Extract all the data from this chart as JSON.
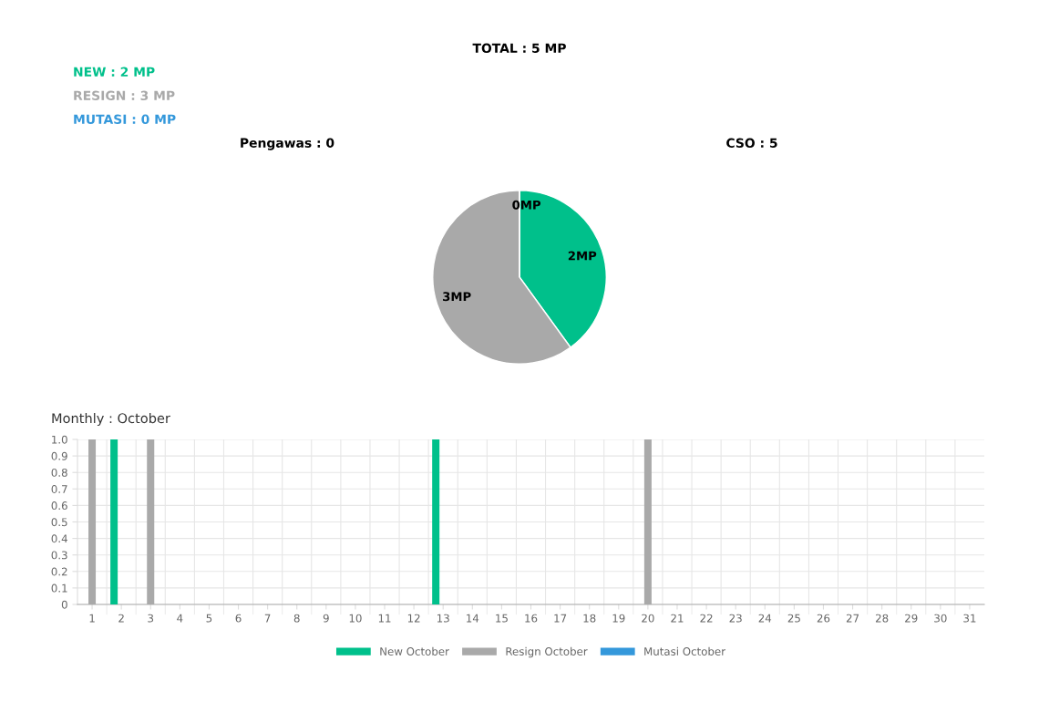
{
  "chart_data": [
    {
      "type": "pie",
      "title": "TOTAL : 5 MP",
      "categories": [
        null,
        null,
        null
      ],
      "values": [
        2,
        3,
        0
      ],
      "colors": [
        "#00c08b",
        "#a9a9a9",
        "#3498db"
      ],
      "value_labels": [
        "2MP",
        "3MP",
        "0MP"
      ],
      "annotations": [
        "NEW : 2 MP",
        "RESIGN : 3 MP",
        "MUTASI : 0 MP",
        "Pengawas : 0",
        "CSO : 5"
      ]
    },
    {
      "type": "bar",
      "title": "Monthly : October",
      "categories": [
        "1",
        "2",
        "3",
        "4",
        "5",
        "6",
        "7",
        "8",
        "9",
        "10",
        "11",
        "12",
        "13",
        "14",
        "15",
        "16",
        "17",
        "18",
        "19",
        "20",
        "21",
        "22",
        "23",
        "24",
        "25",
        "26",
        "27",
        "28",
        "29",
        "30",
        "31"
      ],
      "series": [
        {
          "name": "New October",
          "color": "#00c08b",
          "values": [
            0,
            1,
            0,
            0,
            0,
            0,
            0,
            0,
            0,
            0,
            0,
            0,
            1,
            0,
            0,
            0,
            0,
            0,
            0,
            0,
            0,
            0,
            0,
            0,
            0,
            0,
            0,
            0,
            0,
            0,
            0
          ]
        },
        {
          "name": "Resign October",
          "color": "#a9a9a9",
          "values": [
            1,
            0,
            1,
            0,
            0,
            0,
            0,
            0,
            0,
            0,
            0,
            0,
            0,
            0,
            0,
            0,
            0,
            0,
            0,
            1,
            0,
            0,
            0,
            0,
            0,
            0,
            0,
            0,
            0,
            0,
            0
          ]
        },
        {
          "name": "Mutasi October",
          "color": "#3498db",
          "values": [
            0,
            0,
            0,
            0,
            0,
            0,
            0,
            0,
            0,
            0,
            0,
            0,
            0,
            0,
            0,
            0,
            0,
            0,
            0,
            0,
            0,
            0,
            0,
            0,
            0,
            0,
            0,
            0,
            0,
            0,
            0
          ]
        }
      ],
      "ylim": [
        0,
        1.0
      ],
      "yticks": [
        0,
        0.1,
        0.2,
        0.3,
        0.4,
        0.5,
        0.6,
        0.7,
        0.8,
        0.9,
        {
          "value": 1,
          "label": "1.0"
        }
      ],
      "grid": true,
      "legend": "bottom"
    }
  ]
}
